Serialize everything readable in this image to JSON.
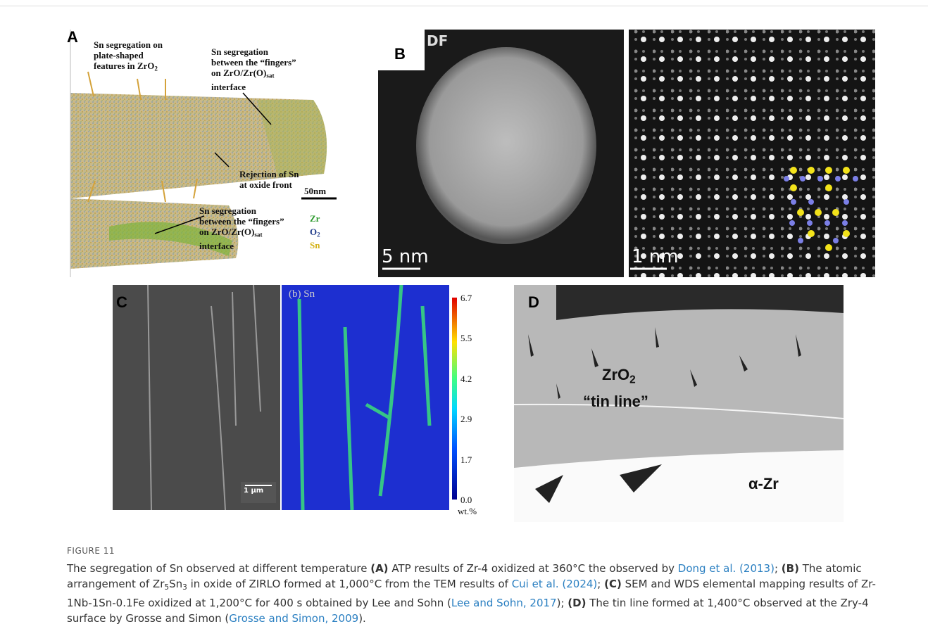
{
  "panels": [
    {
      "label": "A",
      "annotations": [
        {
          "lines": [
            [
              "Sn segregation on"
            ],
            [
              "plate-shaped"
            ],
            [
              "features in ZrO",
              {
                "text": "2",
                "style": "sub"
              }
            ]
          ]
        },
        {
          "lines": [
            [
              "Sn segregation"
            ],
            [
              "between the “fingers”"
            ],
            [
              "on ZrO/Zr(O)",
              {
                "text": "sat",
                "style": "sub"
              }
            ],
            [
              "interface"
            ]
          ]
        },
        {
          "lines": [
            [
              "Rejection of Sn"
            ],
            [
              "at oxide front"
            ]
          ]
        },
        {
          "lines": [
            [
              "50nm"
            ]
          ]
        },
        {
          "lines": [
            [
              "Sn segregation"
            ],
            [
              "between the “fingers”"
            ],
            [
              "on ZrO/Zr(O)",
              {
                "text": "sat",
                "style": "sub"
              }
            ],
            [
              "interface"
            ]
          ]
        }
      ],
      "legend": [
        {
          "runs": [
            "Zr"
          ],
          "color": "#2e9a2e"
        },
        {
          "runs": [
            "O",
            {
              "text": "2",
              "style": "sub"
            }
          ],
          "color": "#1f3a8a"
        },
        {
          "runs": [
            "Sn"
          ],
          "color": "#d4b21a"
        }
      ]
    },
    {
      "label": "B",
      "annotations": [
        "DF",
        "5 nm",
        "1 nm"
      ]
    },
    {
      "label": "C",
      "annotations": [
        "(b) Sn",
        "1 μm"
      ],
      "colorbar": {
        "ticks": [
          "6.7",
          "5.5",
          "4.2",
          "2.9",
          "1.7",
          "0.0"
        ],
        "unit": "wt.%"
      }
    },
    {
      "label": "D",
      "annotations": [
        [
          "ZrO",
          {
            "text": "2",
            "style": "sub"
          }
        ],
        [
          "“tin line”"
        ],
        [
          "α-Zr"
        ]
      ]
    }
  ],
  "caption": {
    "label": "FIGURE 11",
    "runs": [
      "The segregation of Sn observed at different temperature ",
      {
        "text": "(A)",
        "style": "bold"
      },
      " ATP results of Zr-4 oxidized at 360°C the observed by ",
      {
        "text": "Dong et al. (2013)",
        "style": "link"
      },
      "; ",
      {
        "text": "(B)",
        "style": "bold"
      },
      " The atomic arrangement of Zr",
      {
        "text": "5",
        "style": "sub"
      },
      "Sn",
      {
        "text": "3",
        "style": "sub"
      },
      " in oxide of ZIRLO formed at 1,000°C from the TEM results of ",
      {
        "text": "Cui et al. (2024)",
        "style": "link"
      },
      "; ",
      {
        "text": "(C)",
        "style": "bold"
      },
      " SEM and WDS elemental mapping results of Zr-1Nb-1Sn-0.1Fe oxidized at 1,200°C for 400 s obtained by Lee and Sohn (",
      {
        "text": "Lee and Sohn, 2017",
        "style": "link"
      },
      "); ",
      {
        "text": "(D)",
        "style": "bold"
      },
      " The tin line formed at 1,400°C observed at the Zry-4 surface by Grosse and Simon (",
      {
        "text": "Grosse and Simon, 2009",
        "style": "link"
      },
      ")."
    ]
  }
}
